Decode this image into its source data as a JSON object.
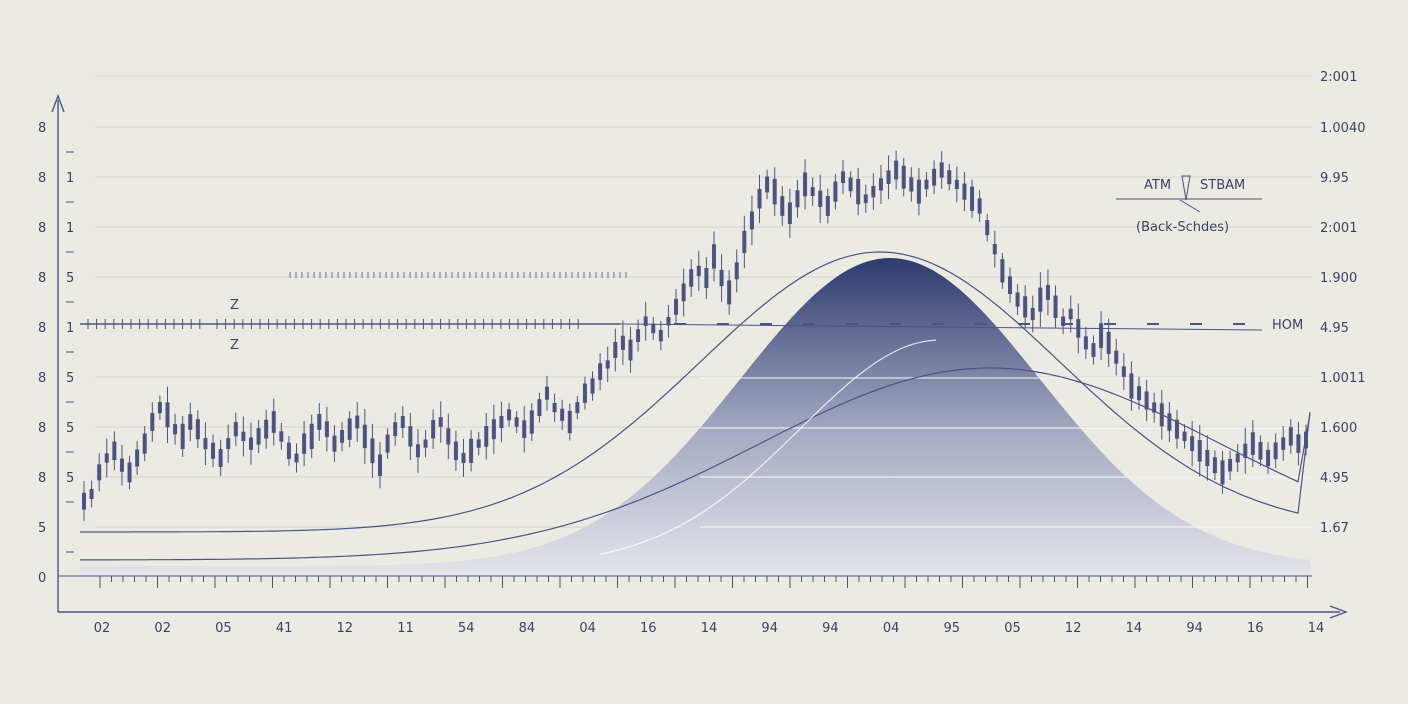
{
  "chart_data": {
    "type": "line",
    "title": "",
    "xlabel": "",
    "ylabel": "",
    "grid": true,
    "colors": {
      "background": "#ecebe3",
      "ink": "#4b5380",
      "fill_top": "#2f3a6e",
      "fill_bottom": "#e4e4ea",
      "grid": "#d4d3cc"
    },
    "x_ticks": [
      "02",
      "02",
      "05",
      "41",
      "12",
      "11",
      "54",
      "84",
      "04",
      "16",
      "14",
      "94",
      "94",
      "04",
      "95",
      "05",
      "12",
      "14",
      "94",
      "16",
      "14"
    ],
    "y_left_ticks": [
      "8",
      "8",
      "8",
      "8",
      "8",
      "8",
      "8",
      "8",
      "5",
      "0"
    ],
    "y_right_ticks": [
      "2:001",
      "1.0040",
      "9.95",
      "2:001",
      "1.900",
      "4.95",
      "1.0011",
      "1.600",
      "4.95",
      "1.67"
    ],
    "left_minor_labels": [
      "1",
      "1",
      "5",
      "1",
      "5",
      "5",
      "5"
    ],
    "row_label_right": "HOM",
    "row_label_left": {
      "top": "Z",
      "bottom": "Z"
    },
    "legend": {
      "line1": "ATM",
      "line2": "STBAM",
      "line3": "(Back-Schdes)"
    },
    "series": [
      {
        "values": [
          0.08,
          0.1,
          0.16,
          0.2,
          0.22,
          0.18,
          0.16,
          0.2,
          0.24,
          0.3,
          0.34,
          0.32,
          0.28,
          0.26,
          0.3,
          0.28,
          0.24,
          0.22,
          0.2,
          0.24,
          0.28,
          0.26,
          0.24,
          0.26,
          0.28,
          0.3,
          0.26,
          0.22,
          0.2,
          0.24,
          0.26,
          0.3,
          0.28,
          0.24,
          0.26,
          0.28,
          0.3,
          0.26,
          0.22,
          0.18,
          0.24,
          0.28,
          0.3,
          0.26,
          0.22,
          0.24,
          0.28,
          0.3,
          0.26,
          0.22,
          0.2,
          0.22,
          0.24,
          0.26,
          0.28,
          0.3,
          0.32,
          0.3,
          0.28,
          0.3,
          0.34,
          0.38,
          0.34,
          0.32,
          0.3,
          0.34,
          0.38,
          0.4,
          0.44,
          0.46,
          0.5,
          0.52,
          0.5,
          0.54,
          0.58,
          0.56,
          0.54,
          0.58,
          0.62,
          0.66,
          0.7,
          0.72,
          0.7,
          0.76,
          0.7,
          0.66,
          0.72,
          0.8,
          0.86,
          0.92,
          0.96,
          0.94,
          0.9,
          0.88,
          0.92,
          0.96,
          0.94,
          0.92,
          0.9,
          0.94,
          0.98,
          0.96,
          0.94,
          0.92,
          0.94,
          0.96,
          0.98,
          1.0,
          0.98,
          0.96,
          0.94,
          0.96,
          0.98,
          1.0,
          0.98,
          0.96,
          0.94,
          0.92,
          0.9,
          0.84,
          0.78,
          0.72,
          0.68,
          0.64,
          0.62,
          0.6,
          0.64,
          0.66,
          0.62,
          0.58,
          0.6,
          0.56,
          0.52,
          0.5,
          0.54,
          0.52,
          0.48,
          0.44,
          0.4,
          0.38,
          0.36,
          0.34,
          0.32,
          0.3,
          0.28,
          0.26,
          0.24,
          0.22,
          0.2,
          0.18,
          0.16,
          0.18,
          0.2,
          0.22,
          0.24,
          0.22,
          0.2,
          0.22,
          0.24,
          0.26,
          0.24,
          0.25
        ]
      }
    ]
  }
}
